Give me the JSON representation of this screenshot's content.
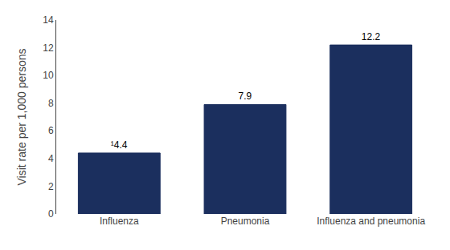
{
  "chart_data": {
    "type": "bar",
    "categories": [
      "Influenza",
      "Pneumonia",
      "Influenza and pneumonia"
    ],
    "values": [
      4.4,
      7.9,
      12.2
    ],
    "value_labels": [
      "¹4.4",
      "7.9",
      "12.2"
    ],
    "data_labels": true,
    "color": "#1b2f5e",
    "ylabel": "Visit rate per 1,000 persons",
    "ylim": [
      0,
      14
    ],
    "yticks": [
      0,
      2,
      4,
      6,
      8,
      10,
      12,
      14
    ],
    "grid": false
  }
}
